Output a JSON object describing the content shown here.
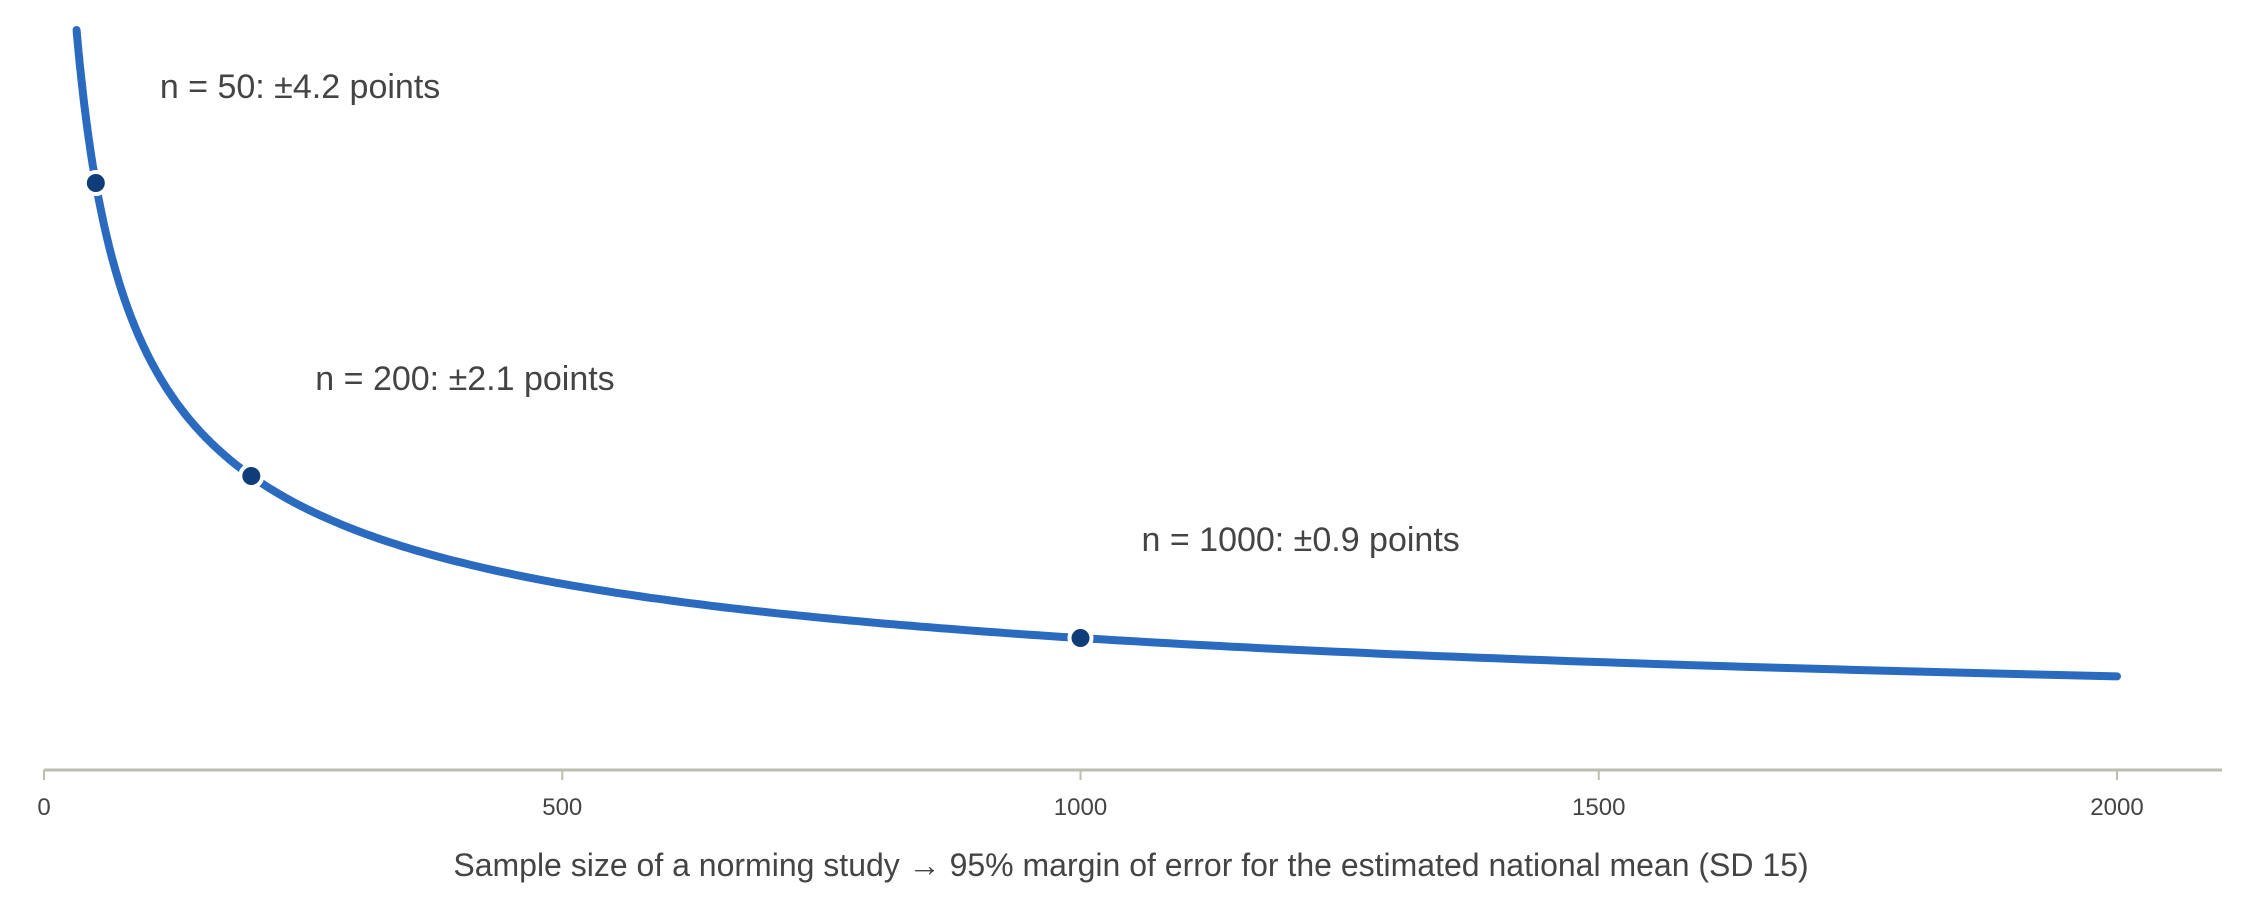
{
  "chart_data": {
    "type": "line",
    "title": "",
    "xlabel": "Sample size of a norming study → 95% margin of error for the estimated national mean (SD 15)",
    "ylabel": "",
    "xlim": [
      0,
      2000
    ],
    "x_ticks": [
      0,
      500,
      1000,
      1500,
      2000
    ],
    "x_tick_labels": [
      "0",
      "500",
      "1000",
      "1500",
      "2000"
    ],
    "y_axis_visible": false,
    "grid": false,
    "series": [
      {
        "formula": "1.96 * 15 / sqrt(n)",
        "x": [
          30,
          40,
          50,
          75,
          100,
          150,
          200,
          300,
          400,
          500,
          600,
          700,
          800,
          900,
          1000,
          1200,
          1400,
          1600,
          1800,
          2000
        ],
        "values": [
          5.37,
          4.65,
          4.16,
          3.4,
          2.94,
          2.4,
          2.08,
          1.7,
          1.47,
          1.31,
          1.2,
          1.11,
          1.04,
          0.98,
          0.93,
          0.85,
          0.79,
          0.74,
          0.69,
          0.66
        ],
        "color": "#2a6bbf"
      }
    ],
    "highlighted_points": [
      {
        "x": 50,
        "y": 4.16,
        "label": "n = 50: ±4.2 points"
      },
      {
        "x": 200,
        "y": 2.08,
        "label": "n = 200: ±2.1 points"
      },
      {
        "x": 1000,
        "y": 0.93,
        "label": "n = 1000: ±0.9 points"
      }
    ],
    "point_color": "#0f3d7a",
    "axis_color": "#bdbdb0"
  }
}
